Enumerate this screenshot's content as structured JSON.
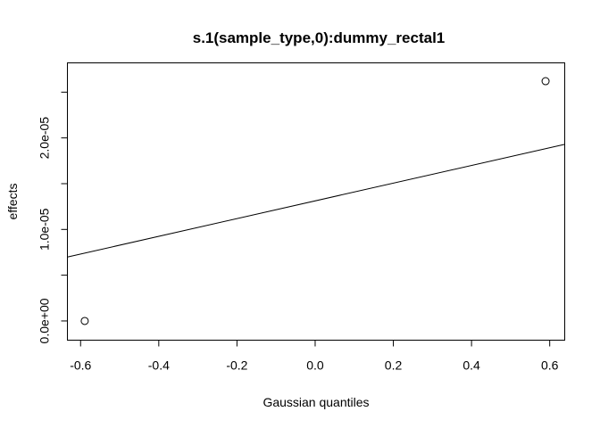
{
  "chart_data": {
    "type": "scatter",
    "title": "s.1(sample_type,0):dummy_rectal1",
    "xlabel": "Gaussian quantiles",
    "ylabel": "effects",
    "xlim": [
      -0.6337,
      0.6384
    ],
    "ylim": [
      -2.1e-06,
      2.82e-05
    ],
    "x_ticks": [
      -0.6,
      -0.4,
      -0.2,
      0.0,
      0.2,
      0.4,
      0.6
    ],
    "x_tick_labels": [
      "-0.6",
      "-0.4",
      "-0.2",
      "0.0",
      "0.2",
      "0.4",
      "0.6"
    ],
    "y_ticks": [
      0,
      5e-06,
      1e-05,
      1.5e-05,
      2e-05,
      2.5e-05
    ],
    "y_tick_labels": [
      "0.0e+00",
      "",
      "1.0e-05",
      "",
      "2.0e-05",
      ""
    ],
    "points": [
      {
        "x": -0.5894,
        "y": 0.0
      },
      {
        "x": 0.5894,
        "y": 2.62e-05
      }
    ],
    "reference_line": {
      "intercept": 1.312e-05,
      "slope": 9.68e-06
    },
    "grid": false,
    "legend": "none"
  }
}
